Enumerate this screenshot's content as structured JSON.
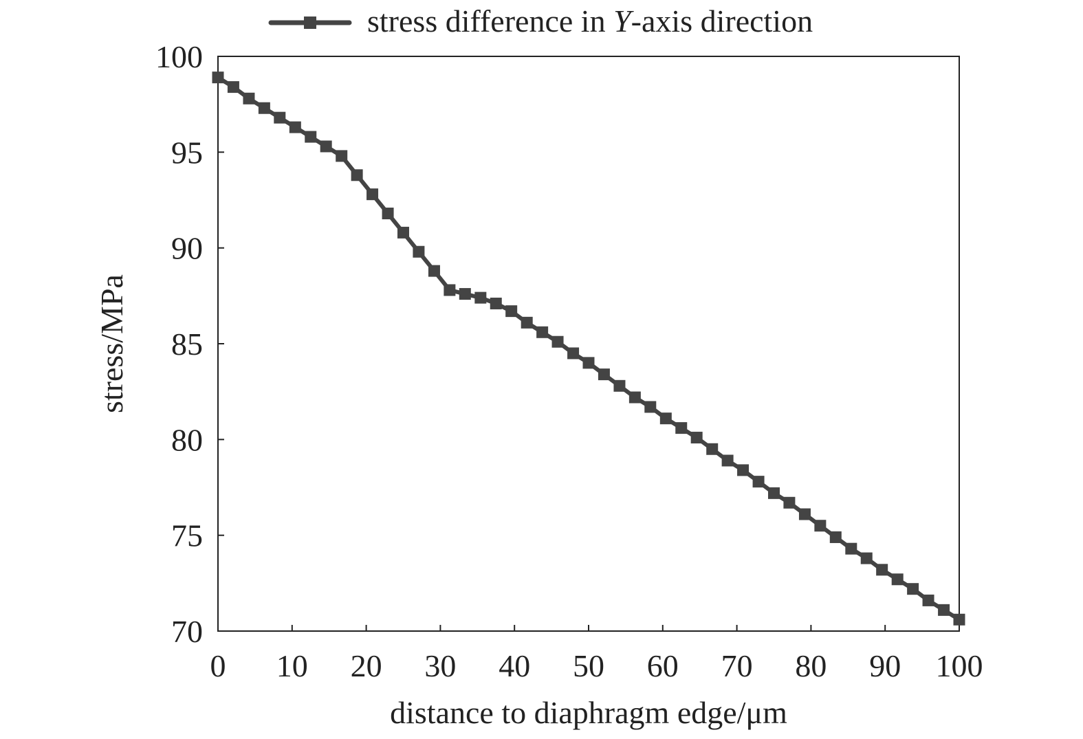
{
  "chart_data": {
    "type": "line",
    "xlabel": "distance to diaphragm edge/μm",
    "ylabel": "stress/MPa",
    "xlim": [
      0,
      100
    ],
    "ylim": [
      70,
      100
    ],
    "xticks": [
      0,
      10,
      20,
      30,
      40,
      50,
      60,
      70,
      80,
      90,
      100
    ],
    "yticks": [
      70,
      75,
      80,
      85,
      90,
      95,
      100
    ],
    "grid": false,
    "legend": {
      "placement": "top-center",
      "entries": [
        {
          "prefix": "stress difference in ",
          "italic": "Y",
          "suffix": "-axis direction"
        }
      ]
    },
    "series": [
      {
        "name": "stress difference in Y-axis direction",
        "color": "#444444",
        "marker": "square",
        "x": [
          0,
          2.08,
          4.17,
          6.25,
          8.33,
          10.42,
          12.5,
          14.58,
          16.67,
          18.75,
          20.83,
          22.92,
          25,
          27.08,
          29.17,
          31.25,
          33.33,
          35.42,
          37.5,
          39.58,
          41.67,
          43.75,
          45.83,
          47.92,
          50,
          52.08,
          54.17,
          56.25,
          58.33,
          60.42,
          62.5,
          64.58,
          66.67,
          68.75,
          70.83,
          72.92,
          75,
          77.08,
          79.17,
          81.25,
          83.33,
          85.42,
          87.5,
          89.58,
          91.67,
          93.75,
          95.83,
          97.92,
          100
        ],
        "y": [
          98.9,
          98.4,
          97.8,
          97.3,
          96.8,
          96.3,
          95.8,
          95.3,
          94.8,
          93.8,
          92.8,
          91.8,
          90.8,
          89.8,
          88.8,
          87.8,
          87.6,
          87.4,
          87.1,
          86.7,
          86.1,
          85.6,
          85.1,
          84.5,
          84.0,
          83.4,
          82.8,
          82.2,
          81.7,
          81.1,
          80.6,
          80.1,
          79.5,
          78.9,
          78.4,
          77.8,
          77.2,
          76.7,
          76.1,
          75.5,
          74.9,
          74.3,
          73.8,
          73.2,
          72.7,
          72.2,
          71.6,
          71.1,
          70.6
        ]
      }
    ]
  }
}
